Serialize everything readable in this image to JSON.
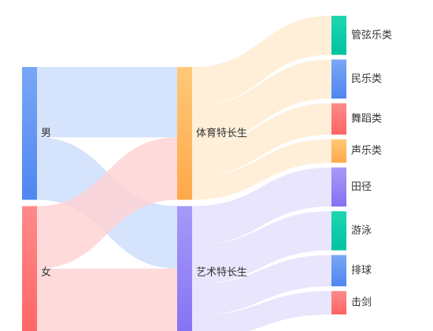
{
  "chart_data": {
    "type": "sankey",
    "title": "",
    "nodes": [
      {
        "id": "male",
        "label": "男",
        "level": 0,
        "color_top": "#79A7F6",
        "color_bottom": "#4F86F0"
      },
      {
        "id": "female",
        "label": "女",
        "level": 0,
        "color_top": "#FF8A8A",
        "color_bottom": "#FF6464"
      },
      {
        "id": "sports",
        "label": "体育特长生",
        "level": 1,
        "color_top": "#FFC977",
        "color_bottom": "#FFA84A"
      },
      {
        "id": "arts",
        "label": "艺术特长生",
        "level": 1,
        "color_top": "#A79AF8",
        "color_bottom": "#8371F2"
      },
      {
        "id": "orchestra",
        "label": "管弦乐类",
        "level": 2,
        "color_top": "#1FD6B2",
        "color_bottom": "#00C3A0"
      },
      {
        "id": "folk_music",
        "label": "民乐类",
        "level": 2,
        "color_top": "#79A7F6",
        "color_bottom": "#4F86F0"
      },
      {
        "id": "dance",
        "label": "舞蹈类",
        "level": 2,
        "color_top": "#FF8A8A",
        "color_bottom": "#FF6464"
      },
      {
        "id": "vocal",
        "label": "声乐类",
        "level": 2,
        "color_top": "#FFC977",
        "color_bottom": "#FFA84A"
      },
      {
        "id": "track",
        "label": "田径",
        "level": 2,
        "color_top": "#A79AF8",
        "color_bottom": "#8371F2"
      },
      {
        "id": "swimming",
        "label": "游泳",
        "level": 2,
        "color_top": "#1FD6B2",
        "color_bottom": "#00C3A0"
      },
      {
        "id": "volleyball",
        "label": "排球",
        "level": 2,
        "color_top": "#79A7F6",
        "color_bottom": "#4F86F0"
      },
      {
        "id": "fencing",
        "label": "击剑",
        "level": 2,
        "color_top": "#FF8A8A",
        "color_bottom": "#FF6464"
      }
    ],
    "links": [
      {
        "source": "male",
        "target": "sports",
        "value": 9,
        "color": "#CCDDFB"
      },
      {
        "source": "male",
        "target": "arts",
        "value": 8,
        "color": "#CCDDFB"
      },
      {
        "source": "female",
        "target": "sports",
        "value": 8,
        "color": "#FFD2D2"
      },
      {
        "source": "female",
        "target": "arts",
        "value": 9,
        "color": "#FFD2D2"
      },
      {
        "source": "sports",
        "target": "orchestra",
        "value": 5,
        "color": "#FFEBCF"
      },
      {
        "source": "sports",
        "target": "folk_music",
        "value": 5,
        "color": "#FFEBCF"
      },
      {
        "source": "sports",
        "target": "dance",
        "value": 4,
        "color": "#FFEBCF"
      },
      {
        "source": "sports",
        "target": "vocal",
        "value": 3,
        "color": "#FFEBCF"
      },
      {
        "source": "arts",
        "target": "track",
        "value": 5,
        "color": "#E3DFFC"
      },
      {
        "source": "arts",
        "target": "swimming",
        "value": 5,
        "color": "#E3DFFC"
      },
      {
        "source": "arts",
        "target": "volleyball",
        "value": 4,
        "color": "#E3DFFC"
      },
      {
        "source": "arts",
        "target": "fencing",
        "value": 3,
        "color": "#E3DFFC"
      }
    ]
  }
}
